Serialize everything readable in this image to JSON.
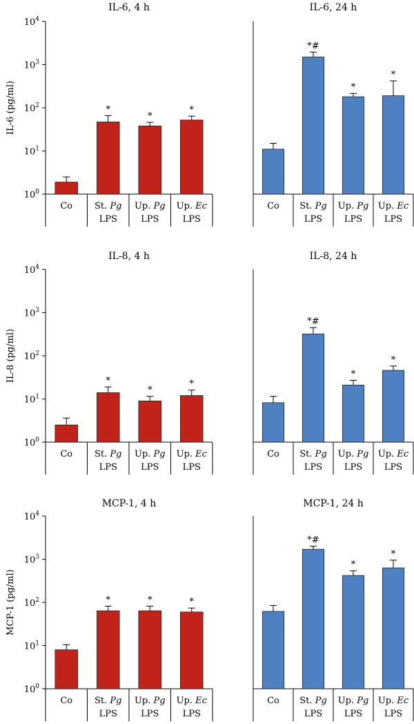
{
  "figure": {
    "colors": {
      "red": "#c1231a",
      "blue": "#4e80c2",
      "axis": "#000000"
    }
  },
  "chart_data": [
    {
      "type": "bar",
      "title": "IL-6, 4 h",
      "ylabel": "IL-6 (pg/ml)",
      "yscale": "log",
      "ylim": [
        1,
        10000
      ],
      "yticks": [
        1,
        10,
        100,
        1000,
        10000
      ],
      "color": "#c1231a",
      "categories": [
        [
          "Co"
        ],
        [
          "St. Pg",
          "LPS"
        ],
        [
          "Up. Pg",
          "LPS"
        ],
        [
          "Up. Ec",
          "LPS"
        ]
      ],
      "values": [
        1.9,
        47,
        38,
        52
      ],
      "error_upper": [
        2.5,
        66,
        46,
        64
      ],
      "significance": [
        "",
        "*",
        "*",
        "*"
      ]
    },
    {
      "type": "bar",
      "title": "IL-6, 24 h",
      "ylabel": "",
      "yscale": "log",
      "ylim": [
        1,
        10000
      ],
      "yticks": [],
      "color": "#4e80c2",
      "categories": [
        [
          "Co"
        ],
        [
          "St. Pg",
          "LPS"
        ],
        [
          "Up. Pg",
          "LPS"
        ],
        [
          "Up. Ec",
          "LPS"
        ]
      ],
      "values": [
        11,
        1500,
        180,
        190
      ],
      "error_upper": [
        15,
        1950,
        215,
        420
      ],
      "significance": [
        "",
        "*#",
        "*",
        "*"
      ]
    },
    {
      "type": "bar",
      "title": "IL-8, 4 h",
      "ylabel": "IL-8 (pg/ml)",
      "yscale": "log",
      "ylim": [
        1,
        10000
      ],
      "yticks": [
        1,
        10,
        100,
        1000,
        10000
      ],
      "color": "#c1231a",
      "categories": [
        [
          "Co"
        ],
        [
          "St. Pg",
          "LPS"
        ],
        [
          "Up. Pg",
          "LPS"
        ],
        [
          "Up. Ec",
          "LPS"
        ]
      ],
      "values": [
        2.5,
        14,
        9,
        12
      ],
      "error_upper": [
        3.6,
        19,
        11.5,
        16
      ],
      "significance": [
        "",
        "*",
        "*",
        "*"
      ]
    },
    {
      "type": "bar",
      "title": "IL-8, 24 h",
      "ylabel": "",
      "yscale": "log",
      "ylim": [
        1,
        10000
      ],
      "yticks": [],
      "color": "#4e80c2",
      "categories": [
        [
          "Co"
        ],
        [
          "St. Pg",
          "LPS"
        ],
        [
          "Up. Pg",
          "LPS"
        ],
        [
          "Up. Ec",
          "LPS"
        ]
      ],
      "values": [
        8.2,
        320,
        21,
        46
      ],
      "error_upper": [
        11.5,
        450,
        27,
        58
      ],
      "significance": [
        "",
        "*#",
        "*",
        "*"
      ]
    },
    {
      "type": "bar",
      "title": "MCP-1, 4 h",
      "ylabel": "MCP-1 (pg/ml)",
      "yscale": "log",
      "ylim": [
        1,
        10000
      ],
      "yticks": [
        1,
        10,
        100,
        1000,
        10000
      ],
      "color": "#c1231a",
      "categories": [
        [
          "Co"
        ],
        [
          "St. Pg",
          "LPS"
        ],
        [
          "Up. Pg",
          "LPS"
        ],
        [
          "Up. Ec",
          "LPS"
        ]
      ],
      "values": [
        8,
        64,
        64,
        60
      ],
      "error_upper": [
        10.5,
        82,
        82,
        74
      ],
      "significance": [
        "",
        "*",
        "*",
        "*"
      ]
    },
    {
      "type": "bar",
      "title": "MCP-1, 24 h",
      "ylabel": "",
      "yscale": "log",
      "ylim": [
        1,
        10000
      ],
      "yticks": [],
      "color": "#4e80c2",
      "categories": [
        [
          "Co"
        ],
        [
          "St. Pg",
          "LPS"
        ],
        [
          "Up. Pg",
          "LPS"
        ],
        [
          "Up. Ec",
          "LPS"
        ]
      ],
      "values": [
        62,
        1700,
        420,
        630
      ],
      "error_upper": [
        85,
        2000,
        540,
        950
      ],
      "significance": [
        "",
        "*#",
        "*",
        "*"
      ]
    }
  ]
}
